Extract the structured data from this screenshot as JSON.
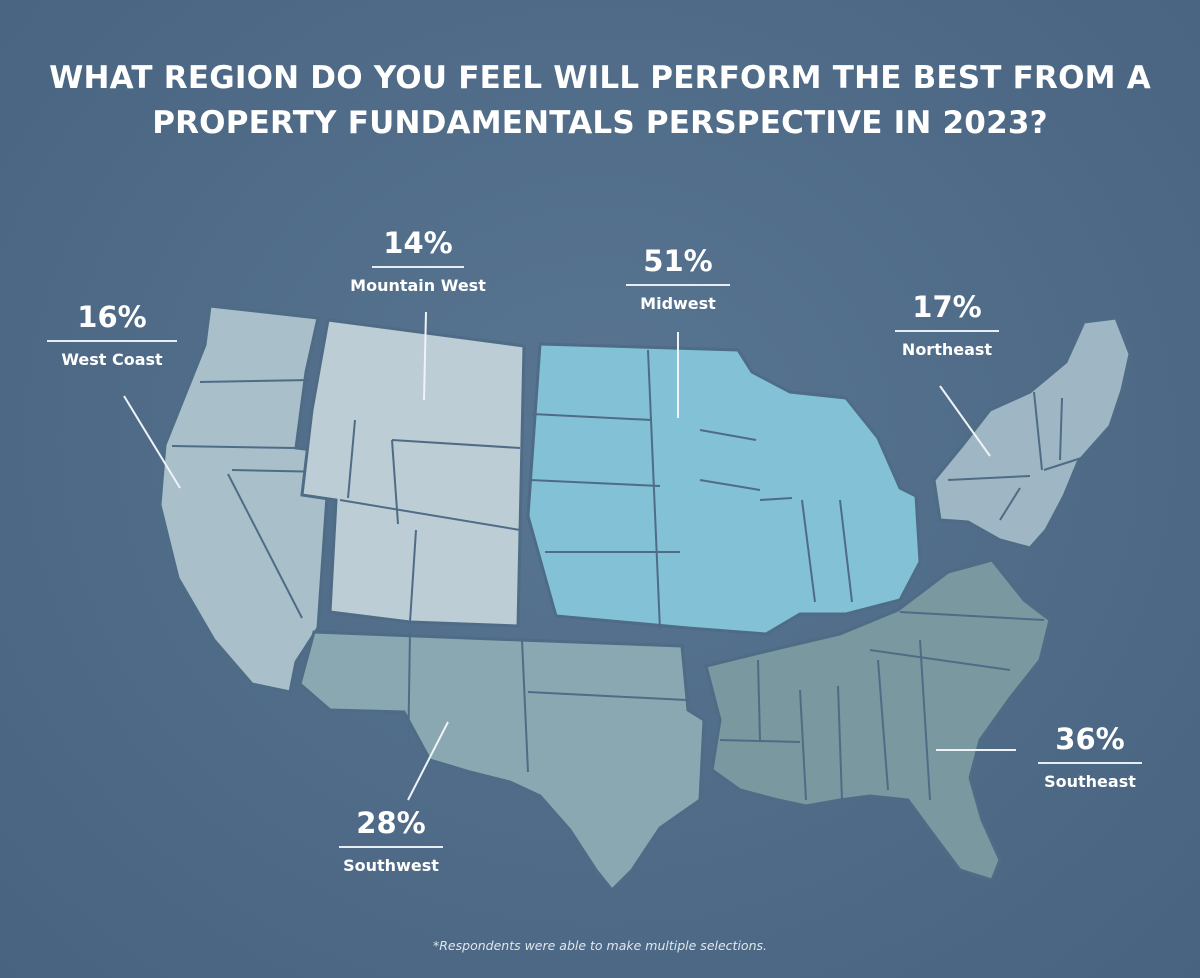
{
  "title_lines": [
    "WHAT REGION DO YOU FEEL WILL PERFORM THE BEST FROM A",
    "PROPERTY FUNDAMENTALS PERSPECTIVE IN 2023?"
  ],
  "regions": [
    {
      "id": "west-coast",
      "percent": "16%",
      "name": "West Coast",
      "value": 16,
      "color": "#a9bfca"
    },
    {
      "id": "mountain-west",
      "percent": "14%",
      "name": "Mountain West",
      "value": 14,
      "color": "#bccdd5"
    },
    {
      "id": "midwest",
      "percent": "51%",
      "name": "Midwest",
      "value": 51,
      "color": "#83c1d6"
    },
    {
      "id": "northeast",
      "percent": "17%",
      "name": "Northeast",
      "value": 17,
      "color": "#9fb7c4"
    },
    {
      "id": "southwest",
      "percent": "28%",
      "name": "Southwest",
      "value": 28,
      "color": "#8aa8b1"
    },
    {
      "id": "southeast",
      "percent": "36%",
      "name": "Southeast",
      "value": 36,
      "color": "#79989f"
    }
  ],
  "footnote": "*Respondents were able to make multiple selections."
}
